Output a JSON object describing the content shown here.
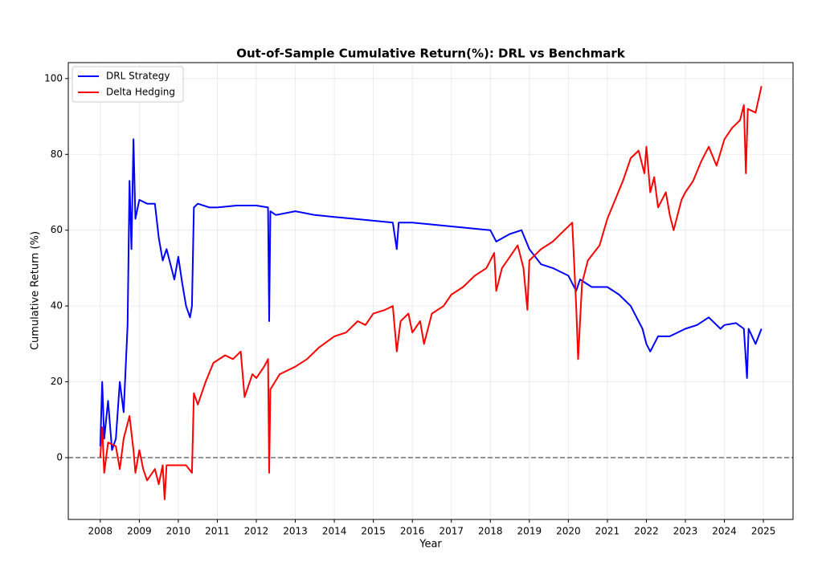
{
  "chart_data": {
    "type": "line",
    "title": "Out-of-Sample Cumulative Return(%): DRL vs Benchmark",
    "x_label": "Year",
    "y_label": "Cumulative Return (%)",
    "xlim": [
      2007.18,
      2025.76
    ],
    "ylim": [
      -16.3,
      104.2
    ],
    "xticks": [
      2008,
      2009,
      2010,
      2011,
      2012,
      2013,
      2014,
      2015,
      2016,
      2017,
      2018,
      2019,
      2020,
      2021,
      2022,
      2023,
      2024,
      2025
    ],
    "yticks": [
      0,
      20,
      40,
      60,
      80,
      100
    ],
    "grid": true,
    "legend": "upper left",
    "reference_line": 0,
    "series": [
      {
        "name": "DRL Strategy",
        "color": "#0000ff",
        "x": [
          2008.0,
          2008.05,
          2008.1,
          2008.2,
          2008.3,
          2008.4,
          2008.5,
          2008.6,
          2008.7,
          2008.75,
          2008.8,
          2008.85,
          2008.9,
          2009.0,
          2009.2,
          2009.4,
          2009.5,
          2009.6,
          2009.7,
          2009.9,
          2010.0,
          2010.1,
          2010.2,
          2010.3,
          2010.35,
          2010.4,
          2010.5,
          2010.8,
          2011.0,
          2011.5,
          2012.0,
          2012.3,
          2012.33,
          2012.36,
          2012.5,
          2013.0,
          2013.5,
          2014.0,
          2014.5,
          2015.0,
          2015.5,
          2015.6,
          2015.65,
          2016.0,
          2016.5,
          2017.0,
          2017.5,
          2018.0,
          2018.15,
          2018.5,
          2018.8,
          2019.0,
          2019.3,
          2019.6,
          2020.0,
          2020.2,
          2020.3,
          2020.6,
          2021.0,
          2021.3,
          2021.6,
          2021.9,
          2022.0,
          2022.1,
          2022.3,
          2022.6,
          2023.0,
          2023.3,
          2023.6,
          2023.9,
          2024.0,
          2024.3,
          2024.5,
          2024.58,
          2024.62,
          2024.8,
          2024.95
        ],
        "values": [
          3,
          20,
          5,
          15,
          2,
          5,
          20,
          12,
          35,
          73,
          55,
          84,
          63,
          68,
          67,
          67,
          58,
          52,
          55,
          47,
          53,
          46,
          40,
          37,
          40,
          66,
          67,
          66,
          66,
          66.5,
          66.5,
          66,
          36,
          65,
          64,
          65,
          64,
          63.5,
          63,
          62.5,
          62,
          55,
          62,
          62,
          61.5,
          61,
          60.5,
          60,
          57,
          59,
          60,
          55,
          51,
          50,
          48,
          44,
          47,
          45,
          45,
          43,
          40,
          34,
          30,
          28,
          32,
          32,
          34,
          35,
          37,
          34,
          35,
          35.5,
          34,
          21,
          34,
          30,
          34
        ]
      },
      {
        "name": "Delta Hedging",
        "color": "#ff0000",
        "x": [
          2008.0,
          2008.05,
          2008.1,
          2008.2,
          2008.4,
          2008.5,
          2008.6,
          2008.75,
          2008.85,
          2008.9,
          2009.0,
          2009.1,
          2009.2,
          2009.4,
          2009.5,
          2009.6,
          2009.65,
          2009.7,
          2010.0,
          2010.2,
          2010.35,
          2010.4,
          2010.5,
          2010.7,
          2010.9,
          2011.2,
          2011.4,
          2011.6,
          2011.7,
          2011.9,
          2012.0,
          2012.2,
          2012.3,
          2012.33,
          2012.36,
          2012.6,
          2013.0,
          2013.3,
          2013.6,
          2014.0,
          2014.3,
          2014.6,
          2014.8,
          2015.0,
          2015.3,
          2015.5,
          2015.6,
          2015.7,
          2015.9,
          2016.0,
          2016.2,
          2016.3,
          2016.5,
          2016.8,
          2017.0,
          2017.3,
          2017.6,
          2017.9,
          2018.1,
          2018.15,
          2018.3,
          2018.5,
          2018.7,
          2018.85,
          2018.95,
          2019.0,
          2019.3,
          2019.6,
          2019.9,
          2020.1,
          2020.2,
          2020.25,
          2020.35,
          2020.5,
          2020.8,
          2021.0,
          2021.2,
          2021.4,
          2021.6,
          2021.8,
          2021.95,
          2022.0,
          2022.1,
          2022.2,
          2022.3,
          2022.5,
          2022.6,
          2022.7,
          2022.9,
          2023.0,
          2023.2,
          2023.4,
          2023.6,
          2023.8,
          2024.0,
          2024.2,
          2024.4,
          2024.5,
          2024.55,
          2024.6,
          2024.8,
          2024.95
        ],
        "values": [
          0,
          8,
          -4,
          4,
          3,
          -3,
          5,
          11,
          2,
          -4,
          2,
          -3,
          -6,
          -3,
          -7,
          -2,
          -11,
          -2,
          -2,
          -2,
          -4,
          17,
          14,
          20,
          25,
          27,
          26,
          28,
          16,
          22,
          21,
          24,
          26,
          -4,
          18,
          22,
          24,
          26,
          29,
          32,
          33,
          36,
          35,
          38,
          39,
          40,
          28,
          36,
          38,
          33,
          36,
          30,
          38,
          40,
          43,
          45,
          48,
          50,
          54,
          44,
          50,
          53,
          56,
          50,
          39,
          52,
          55,
          57,
          60,
          62,
          40,
          26,
          46,
          52,
          56,
          63,
          68,
          73,
          79,
          81,
          75,
          82,
          70,
          74,
          66,
          70,
          64,
          60,
          68,
          70,
          73,
          78,
          82,
          77,
          84,
          87,
          89,
          93,
          75,
          92,
          91,
          98
        ]
      }
    ]
  }
}
